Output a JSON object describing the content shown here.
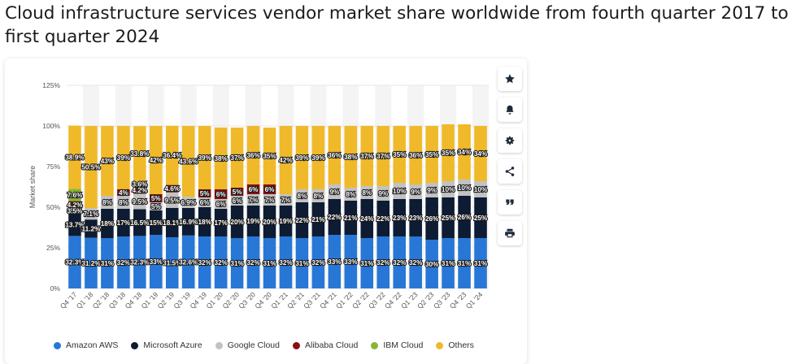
{
  "title": "Cloud infrastructure services vendor market share worldwide from fourth quarter 2017 to first quarter 2024",
  "toolbar": {
    "icons": [
      "star-icon",
      "bell-icon",
      "gear-icon",
      "share-icon",
      "quote-icon",
      "print-icon"
    ]
  },
  "chart_data": {
    "type": "bar",
    "stacked": true,
    "ylabel": "Market share",
    "ylim": [
      0,
      125
    ],
    "yticks": [
      "0%",
      "25%",
      "50%",
      "75%",
      "100%",
      "125%"
    ],
    "categories": [
      "Q4 '17",
      "Q1 '18",
      "Q2 '18",
      "Q3 '18",
      "Q4 '18",
      "Q1 '19",
      "Q2 '19",
      "Q3 '19",
      "Q4 '19",
      "Q1 '20",
      "Q2 '20",
      "Q3 '20",
      "Q4 '20",
      "Q1 '21",
      "Q2 '21",
      "Q3 '21",
      "Q4 '21",
      "Q1 '22",
      "Q2 '22",
      "Q3 '22",
      "Q4 '22",
      "Q1 '23",
      "Q2 '23",
      "Q3 '23",
      "Q4 '23",
      "Q1 '24"
    ],
    "series": [
      {
        "name": "Amazon AWS",
        "color": "#2877d6",
        "values": [
          32.3,
          31.2,
          31,
          32,
          32.3,
          33,
          31.5,
          32.6,
          32,
          32,
          31,
          32,
          31,
          32,
          31,
          32,
          33,
          33,
          31,
          32,
          32,
          32,
          30,
          31,
          31,
          31
        ],
        "labels": [
          "32.3%",
          "31.2%",
          "31%",
          "32%",
          "32.3%",
          "33%",
          "31.5%",
          "32.6%",
          "32%",
          "32%",
          "31%",
          "32%",
          "31%",
          "32%",
          "31%",
          "32%",
          "33%",
          "33%",
          "31%",
          "32%",
          "32%",
          "32%",
          "30%",
          "31%",
          "31%",
          "31%"
        ]
      },
      {
        "name": "Microsoft Azure",
        "color": "#0d1b33",
        "values": [
          13.7,
          11.2,
          18,
          17,
          16.5,
          15,
          18.1,
          16.9,
          18,
          17,
          20,
          19,
          20,
          19,
          22,
          21,
          22,
          21,
          24,
          22,
          23,
          23,
          26,
          25,
          26,
          25
        ],
        "labels": [
          "13.7%",
          "11.2%",
          "18%",
          "17%",
          "16.5%",
          "15%",
          "18.1%",
          "16.9%",
          "18%",
          "17%",
          "20%",
          "19%",
          "20%",
          "19%",
          "22%",
          "21%",
          "22%",
          "21%",
          "24%",
          "22%",
          "23%",
          "23%",
          "26%",
          "25%",
          "26%",
          "25%"
        ]
      },
      {
        "name": "Google Cloud",
        "color": "#c2c2c2",
        "values": [
          3.5,
          7.1,
          8,
          8,
          9.5,
          5,
          9.5,
          6.9,
          6,
          6,
          6,
          7,
          7,
          7,
          8,
          8,
          9,
          8,
          8,
          9,
          10,
          9,
          9,
          10,
          10,
          10
        ],
        "labels": [
          "3.5%",
          "7.1%",
          "8%",
          "8%",
          "9.5%",
          "5%",
          "9.5%",
          "6.9%",
          "6%",
          "6%",
          "6%",
          "7%",
          "7%",
          "7%",
          "8%",
          "8%",
          "9%",
          "8%",
          "8%",
          "9%",
          "10%",
          "9%",
          "9%",
          "10%",
          "10%",
          "10%"
        ]
      },
      {
        "name": "Alibaba Cloud",
        "color": "#8b0f0f",
        "values": [
          4.2,
          0,
          0,
          4,
          4.2,
          5,
          4.6,
          0,
          5,
          6,
          5,
          6,
          6,
          0,
          0,
          0,
          0,
          0,
          0,
          0,
          0,
          0,
          0,
          0,
          0,
          0
        ],
        "labels": [
          "4.2%",
          "",
          "",
          "4%",
          "4.2%",
          "5%",
          "4.6%",
          "",
          "5%",
          "6%",
          "5%",
          "6%",
          "6%",
          "",
          "",
          "",
          "",
          "",
          "",
          "",
          "",
          "",
          "",
          "",
          "",
          ""
        ]
      },
      {
        "name": "IBM Cloud",
        "color": "#8ab534",
        "values": [
          7.6,
          0,
          0,
          0,
          3.6,
          0,
          0,
          0,
          0,
          0,
          0,
          0,
          0,
          0,
          0,
          0,
          0,
          0,
          0,
          0,
          0,
          0,
          0,
          0,
          0,
          0
        ],
        "labels": [
          "7.6%",
          "",
          "",
          "",
          "3.6%",
          "",
          "",
          "",
          "",
          "",
          "",
          "",
          "",
          "",
          "",
          "",
          "",
          "",
          "",
          "",
          "",
          "",
          "",
          "",
          "",
          ""
        ]
      },
      {
        "name": "Others",
        "color": "#f0b929",
        "values": [
          38.9,
          50.5,
          43,
          39,
          33.8,
          42,
          36.4,
          43.6,
          39,
          38,
          37,
          36,
          35,
          42,
          39,
          39,
          36,
          38,
          37,
          37,
          35,
          36,
          35,
          35,
          34,
          34
        ],
        "labels": [
          "38.9%",
          "50.5%",
          "43%",
          "39%",
          "33.8%",
          "42%",
          "36.4%",
          "43.6%",
          "39%",
          "38%",
          "37%",
          "36%",
          "35%",
          "42%",
          "39%",
          "39%",
          "36%",
          "38%",
          "37%",
          "37%",
          "35%",
          "36%",
          "35%",
          "35%",
          "34%",
          "34%"
        ]
      }
    ]
  }
}
